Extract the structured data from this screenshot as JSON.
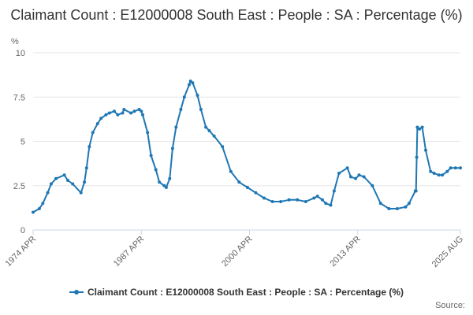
{
  "colors": {
    "series": "#1f77b4",
    "grid": "#e6e6e6",
    "axis": "#ccd6eb"
  },
  "source_label": "Source:",
  "chart_data": {
    "type": "line",
    "title": "Claimant Count : E12000008 South East : People : SA : Percentage (%)",
    "ylabel": "%",
    "xlabel": "",
    "ylim": [
      0,
      10
    ],
    "yticks": [
      0,
      2.5,
      5,
      7.5,
      10
    ],
    "ytick_labels": [
      "0",
      "2.5",
      "5",
      "7.5",
      "10"
    ],
    "xlim": [
      "1974-04",
      "2025-08"
    ],
    "xticks": [
      "1974-04",
      "1987-04",
      "2000-04",
      "2013-04",
      "2025-08"
    ],
    "xtick_labels": [
      "1974 APR",
      "1987 APR",
      "2000 APR",
      "2013 APR",
      "2025 AUG"
    ],
    "grid": true,
    "legend_position": "bottom",
    "series": [
      {
        "name": "Claimant Count : E12000008 South East : People : SA : Percentage (%)",
        "x": [
          "1974-04",
          "1975-01",
          "1975-06",
          "1976-01",
          "1976-06",
          "1977-01",
          "1978-01",
          "1978-06",
          "1979-01",
          "1980-01",
          "1980-06",
          "1980-09",
          "1981-01",
          "1981-06",
          "1982-01",
          "1982-06",
          "1983-01",
          "1983-06",
          "1984-01",
          "1984-06",
          "1985-01",
          "1985-03",
          "1986-01",
          "1986-06",
          "1987-01",
          "1987-04",
          "1987-06",
          "1988-01",
          "1988-06",
          "1989-01",
          "1989-06",
          "1990-01",
          "1990-04",
          "1990-09",
          "1991-01",
          "1991-06",
          "1992-01",
          "1992-06",
          "1993-01",
          "1993-03",
          "1993-06",
          "1994-01",
          "1994-06",
          "1995-01",
          "1995-06",
          "1996-01",
          "1997-01",
          "1998-01",
          "1999-01",
          "2000-01",
          "2001-01",
          "2002-01",
          "2003-01",
          "2004-01",
          "2005-01",
          "2006-01",
          "2007-01",
          "2008-01",
          "2008-06",
          "2009-01",
          "2009-06",
          "2010-01",
          "2010-06",
          "2011-01",
          "2012-01",
          "2012-06",
          "2013-01",
          "2013-06",
          "2014-01",
          "2015-01",
          "2016-01",
          "2017-01",
          "2018-01",
          "2019-01",
          "2019-06",
          "2020-03",
          "2020-04",
          "2020-05",
          "2020-06",
          "2020-09",
          "2021-01",
          "2021-06",
          "2022-01",
          "2022-06",
          "2023-01",
          "2023-06",
          "2024-01",
          "2024-06",
          "2025-01",
          "2025-08"
        ],
        "values": [
          1.0,
          1.2,
          1.5,
          2.1,
          2.6,
          2.9,
          3.1,
          2.8,
          2.6,
          2.1,
          2.7,
          3.5,
          4.7,
          5.5,
          6.0,
          6.3,
          6.5,
          6.6,
          6.7,
          6.5,
          6.6,
          6.8,
          6.6,
          6.7,
          6.8,
          6.7,
          6.5,
          5.5,
          4.2,
          3.4,
          2.7,
          2.5,
          2.4,
          2.9,
          4.6,
          5.8,
          6.8,
          7.5,
          8.2,
          8.4,
          8.3,
          7.6,
          6.8,
          5.8,
          5.6,
          5.3,
          4.7,
          3.3,
          2.7,
          2.4,
          2.1,
          1.8,
          1.6,
          1.6,
          1.7,
          1.7,
          1.6,
          1.8,
          1.9,
          1.7,
          1.5,
          1.4,
          2.2,
          3.2,
          3.5,
          3.0,
          2.9,
          3.1,
          3.0,
          2.5,
          1.5,
          1.2,
          1.2,
          1.3,
          1.5,
          2.2,
          2.2,
          4.1,
          5.8,
          5.7,
          5.8,
          4.5,
          3.3,
          3.2,
          3.1,
          3.1,
          3.3,
          3.5,
          3.5,
          3.5
        ]
      }
    ]
  }
}
